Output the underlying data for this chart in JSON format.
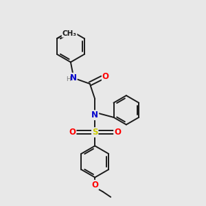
{
  "bg_color": "#e8e8e8",
  "bond_color": "#1a1a1a",
  "bond_width": 1.4,
  "atom_colors": {
    "N": "#0000cc",
    "O": "#ff0000",
    "S": "#cccc00",
    "C": "#1a1a1a"
  },
  "font_size": 8.5,
  "fig_size": [
    3.0,
    3.0
  ],
  "dpi": 100
}
